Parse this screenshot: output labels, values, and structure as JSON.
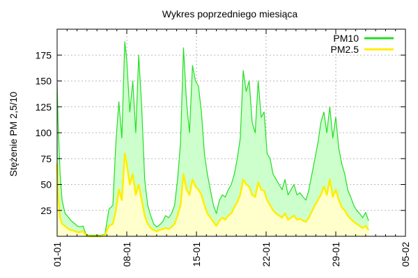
{
  "chart_data": {
    "type": "area",
    "title": "Wykres poprzedniego miesiąca",
    "xlabel": "",
    "ylabel": "Stężenie PM 2,5/10",
    "x_tick_labels": [
      "01-01",
      "08-01",
      "15-01",
      "22-01",
      "29-01",
      "05-02"
    ],
    "x_tick_days": [
      0,
      7,
      14,
      21,
      28,
      35
    ],
    "xlim_days": [
      0,
      35
    ],
    "y_ticks": [
      25,
      50,
      75,
      100,
      125,
      150,
      175
    ],
    "ylim": [
      0,
      200
    ],
    "grid": true,
    "legend_position": "top-right",
    "series": [
      {
        "name": "PM10",
        "color": "#22dd22",
        "fill": "#ccffcc",
        "x": [
          0,
          0.1,
          0.3,
          0.5,
          0.8,
          1.0,
          1.4,
          1.8,
          2.0,
          2.3,
          2.6,
          2.9,
          3.2,
          3.6,
          4.0,
          4.4,
          4.8,
          5.2,
          5.6,
          5.9,
          6.2,
          6.5,
          6.8,
          7.0,
          7.3,
          7.6,
          7.9,
          8.2,
          8.5,
          8.8,
          9.1,
          9.4,
          9.7,
          10.0,
          10.3,
          10.6,
          10.9,
          11.2,
          11.5,
          11.8,
          12.1,
          12.4,
          12.7,
          13.0,
          13.3,
          13.6,
          13.9,
          14.2,
          14.5,
          14.8,
          15.1,
          15.4,
          15.7,
          16.0,
          16.3,
          16.6,
          16.9,
          17.2,
          17.5,
          17.8,
          18.1,
          18.4,
          18.7,
          19.0,
          19.3,
          19.6,
          19.9,
          20.2,
          20.5,
          20.8,
          21.1,
          21.4,
          21.7,
          22.0,
          22.3,
          22.6,
          22.9,
          23.2,
          23.5,
          23.8,
          24.1,
          24.4,
          24.7,
          25.0,
          25.3,
          25.6,
          25.9,
          26.2,
          26.5,
          26.8,
          27.1,
          27.4,
          27.7,
          28.0,
          28.3,
          28.6,
          28.9,
          29.2,
          29.5,
          29.8,
          30.1,
          30.4,
          30.7,
          31.0,
          31.3
        ],
        "y": [
          148,
          110,
          60,
          35,
          22,
          20,
          15,
          12,
          10,
          9,
          10,
          2,
          1,
          1,
          1,
          1,
          2,
          26,
          30,
          90,
          130,
          95,
          188,
          170,
          120,
          150,
          100,
          175,
          125,
          55,
          30,
          20,
          12,
          9,
          11,
          14,
          20,
          18,
          22,
          30,
          55,
          90,
          182,
          130,
          100,
          165,
          150,
          145,
          120,
          80,
          60,
          45,
          30,
          22,
          35,
          40,
          38,
          45,
          50,
          60,
          75,
          95,
          160,
          140,
          150,
          110,
          100,
          150,
          115,
          120,
          80,
          75,
          60,
          55,
          50,
          45,
          55,
          40,
          45,
          50,
          40,
          42,
          38,
          35,
          45,
          60,
          75,
          90,
          110,
          120,
          100,
          125,
          95,
          115,
          85,
          70,
          60,
          45,
          38,
          30,
          25,
          22,
          18,
          23,
          15
        ]
      },
      {
        "name": "PM2.5",
        "color": "#ffee00",
        "fill": "#ffffcc",
        "x": [
          0,
          0.1,
          0.3,
          0.5,
          0.8,
          1.0,
          1.4,
          1.8,
          2.0,
          2.3,
          2.6,
          2.9,
          3.2,
          3.6,
          4.0,
          4.4,
          4.8,
          5.2,
          5.6,
          5.9,
          6.2,
          6.5,
          6.8,
          7.0,
          7.3,
          7.6,
          7.9,
          8.2,
          8.5,
          8.8,
          9.1,
          9.4,
          9.7,
          10.0,
          10.3,
          10.6,
          10.9,
          11.2,
          11.5,
          11.8,
          12.1,
          12.4,
          12.7,
          13.0,
          13.3,
          13.6,
          13.9,
          14.2,
          14.5,
          14.8,
          15.1,
          15.4,
          15.7,
          16.0,
          16.3,
          16.6,
          16.9,
          17.2,
          17.5,
          17.8,
          18.1,
          18.4,
          18.7,
          19.0,
          19.3,
          19.6,
          19.9,
          20.2,
          20.5,
          20.8,
          21.1,
          21.4,
          21.7,
          22.0,
          22.3,
          22.6,
          22.9,
          23.2,
          23.5,
          23.8,
          24.1,
          24.4,
          24.7,
          25.0,
          25.3,
          25.6,
          25.9,
          26.2,
          26.5,
          26.8,
          27.1,
          27.4,
          27.7,
          28.0,
          28.3,
          28.6,
          28.9,
          29.2,
          29.5,
          29.8,
          30.1,
          30.4,
          30.7,
          31.0,
          31.3
        ],
        "y": [
          70,
          40,
          18,
          12,
          10,
          8,
          6,
          5,
          4,
          4,
          5,
          1,
          0,
          0,
          0,
          0,
          1,
          10,
          12,
          25,
          45,
          35,
          80,
          70,
          50,
          60,
          40,
          50,
          35,
          20,
          12,
          8,
          6,
          5,
          6,
          7,
          8,
          7,
          9,
          12,
          20,
          30,
          60,
          45,
          40,
          55,
          48,
          45,
          40,
          30,
          22,
          18,
          14,
          10,
          15,
          18,
          16,
          20,
          22,
          28,
          33,
          40,
          55,
          50,
          48,
          40,
          38,
          52,
          45,
          44,
          35,
          30,
          25,
          22,
          20,
          18,
          22,
          16,
          18,
          20,
          16,
          17,
          15,
          14,
          18,
          24,
          30,
          35,
          40,
          48,
          40,
          55,
          38,
          45,
          35,
          28,
          25,
          20,
          17,
          14,
          12,
          10,
          8,
          10,
          6
        ]
      }
    ]
  }
}
